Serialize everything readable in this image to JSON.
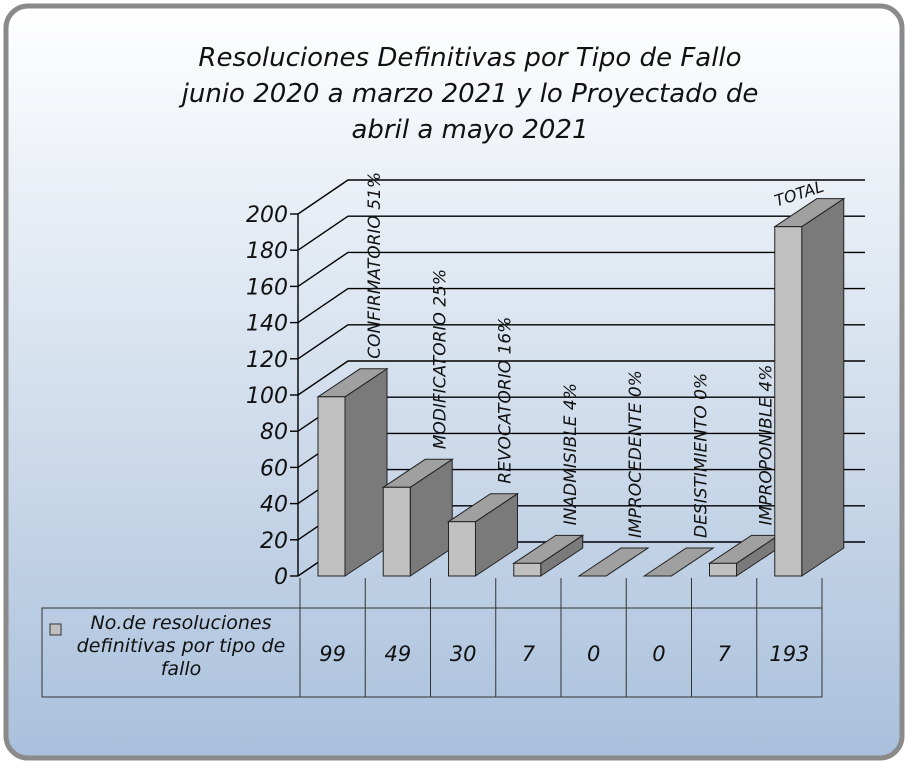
{
  "chart_data": {
    "type": "bar3d",
    "title": [
      "Resoluciones Definitivas por  Tipo de  Fallo",
      "junio  2020 a marzo 2021 y lo Proyectado de",
      "abril a mayo 2021"
    ],
    "categories": [
      "CONFIRMATORIO 51%",
      "MODIFICATORIO  25%",
      "REVOCATORIO 16%",
      "INADMISIBLE  4%",
      "IMPROCEDENTE 0%",
      "DESISTIMIENTO 0%",
      "IMPROPONIBLE  4%",
      "TOTAL"
    ],
    "series": [
      {
        "name": "No.de resoluciones definitivas por tipo de fallo",
        "color": "#c0c0c0",
        "values": [
          99,
          49,
          30,
          7,
          0,
          0,
          7,
          193
        ]
      }
    ],
    "ylim": [
      0,
      200
    ],
    "yticks": [
      0,
      20,
      40,
      60,
      80,
      100,
      120,
      140,
      160,
      180,
      200
    ],
    "grid": true
  }
}
